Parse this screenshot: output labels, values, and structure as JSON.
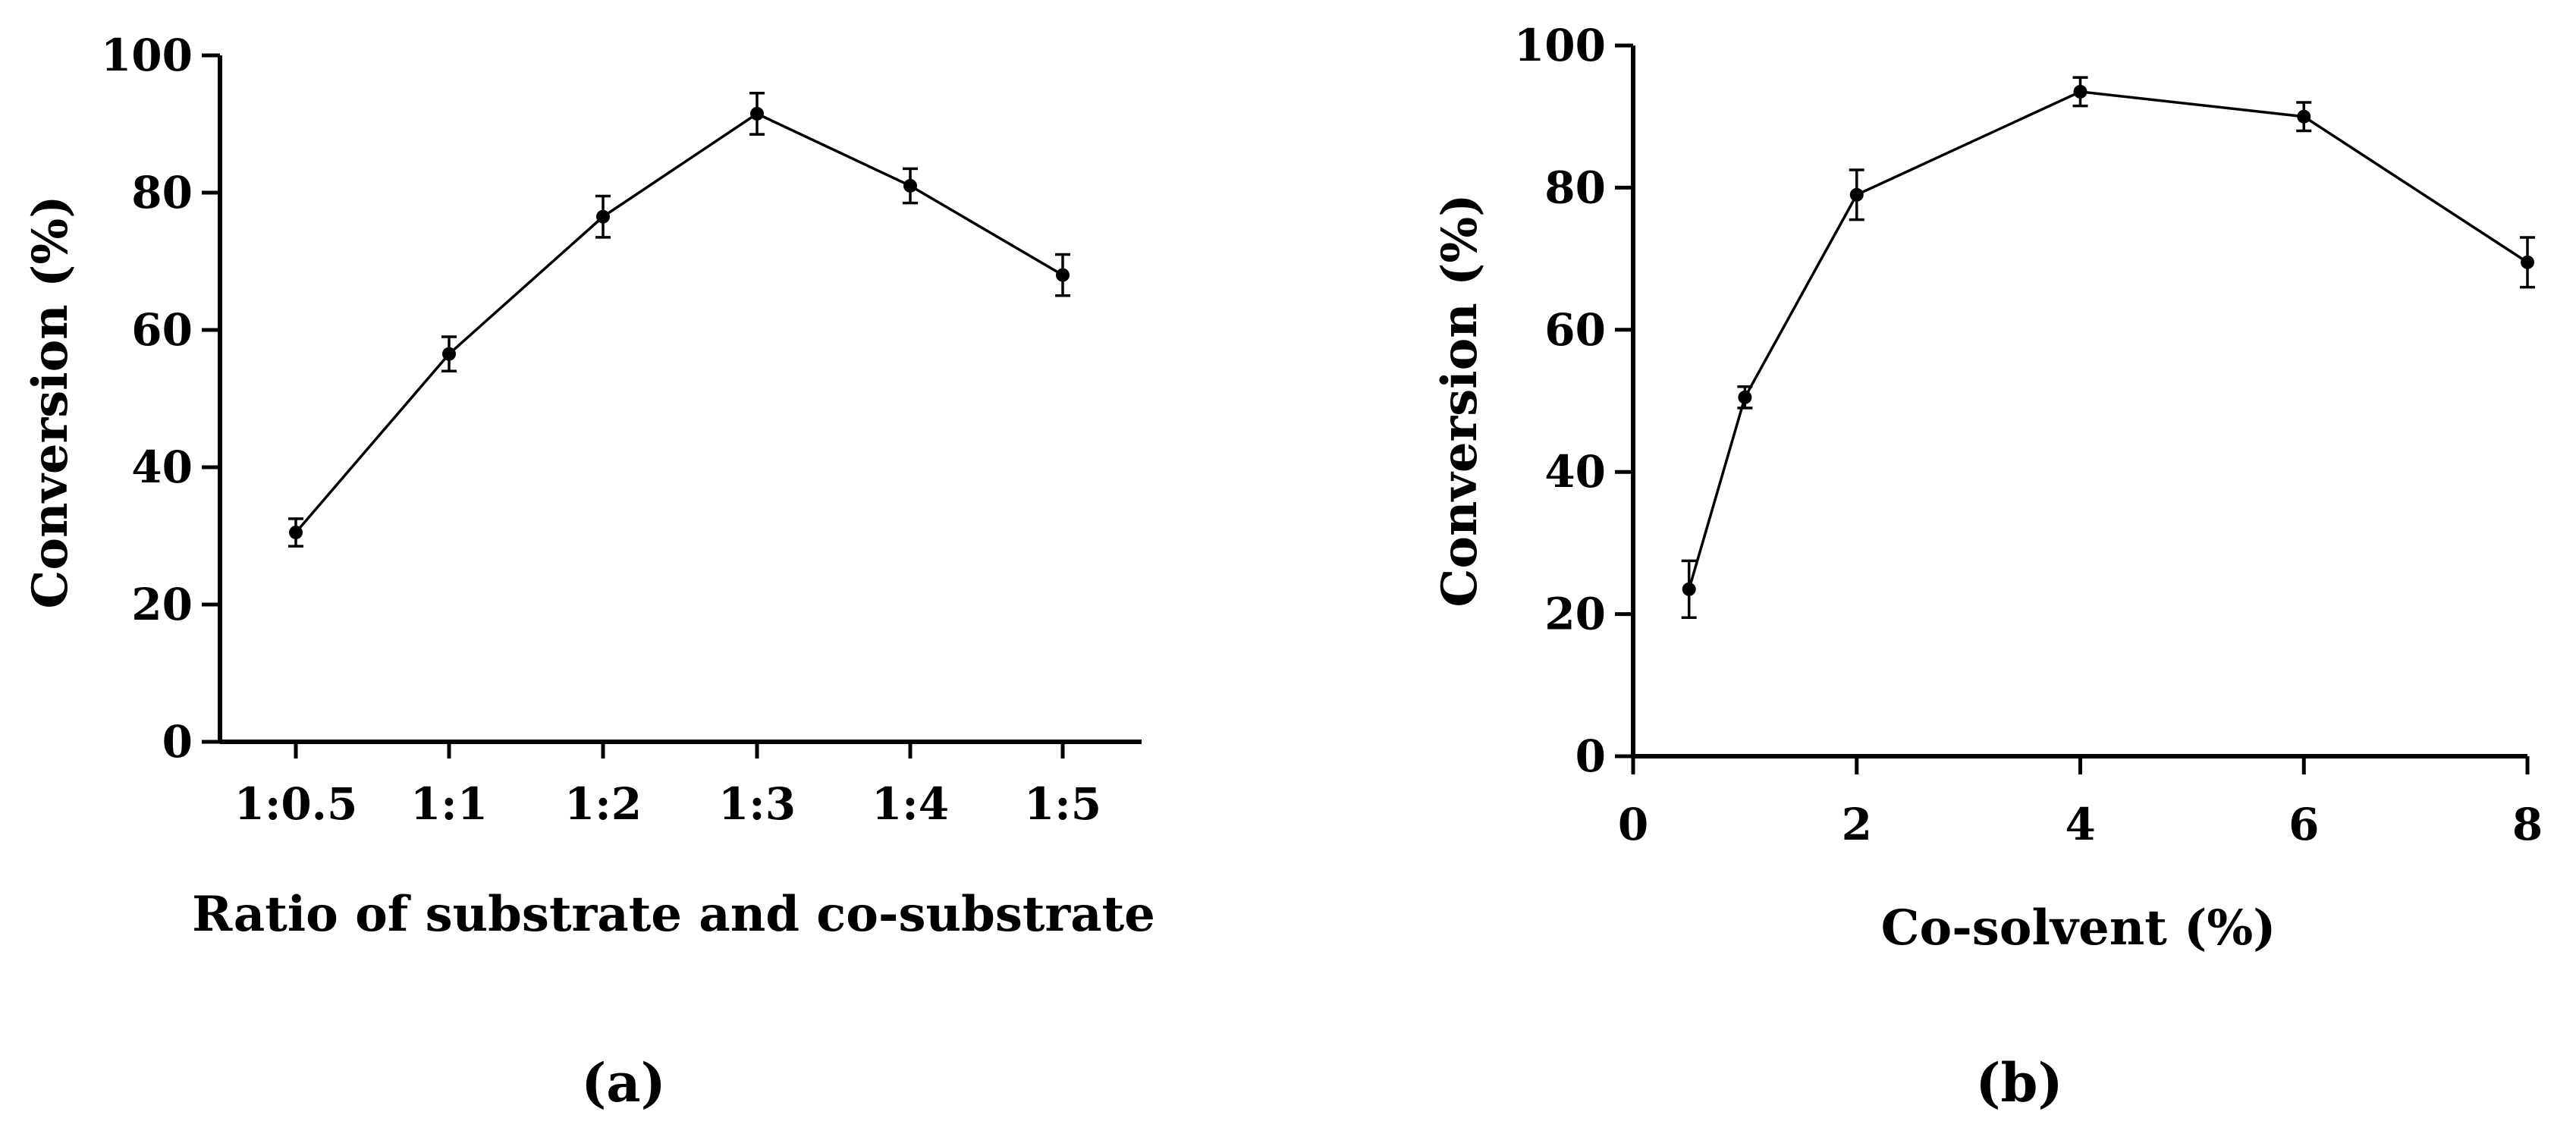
{
  "figure": {
    "panels": [
      "(a)",
      "(b)"
    ]
  },
  "colors": {
    "line": "#000000",
    "background": "#ffffff"
  },
  "chart_data": [
    {
      "panel": "(a)",
      "type": "line",
      "title": "",
      "xlabel": "Ratio of substrate and co-substrate",
      "ylabel": "Conversion (%)",
      "categories": [
        "1:0.5",
        "1:1",
        "1:2",
        "1:3",
        "1:4",
        "1:5"
      ],
      "values": [
        30.5,
        56.5,
        76.5,
        91.5,
        81,
        68
      ],
      "errors": [
        2,
        2.5,
        3,
        3,
        2.5,
        3
      ],
      "ylim": [
        0,
        100
      ],
      "yticks": [
        0,
        20,
        40,
        60,
        80,
        100
      ],
      "grid": false
    },
    {
      "panel": "(b)",
      "type": "line",
      "title": "",
      "xlabel": "Co-solvent (%)",
      "ylabel": "Conversion (%)",
      "x": [
        0.5,
        1,
        2,
        4,
        6,
        8
      ],
      "values": [
        23.5,
        50.5,
        79,
        93.5,
        90,
        69.5
      ],
      "errors": [
        4,
        1.5,
        3.5,
        2,
        2,
        3.5
      ],
      "xlim": [
        0,
        8
      ],
      "xticks": [
        0,
        2,
        4,
        6,
        8
      ],
      "ylim": [
        0,
        100
      ],
      "yticks": [
        0,
        20,
        40,
        60,
        80,
        100
      ],
      "grid": false
    }
  ]
}
